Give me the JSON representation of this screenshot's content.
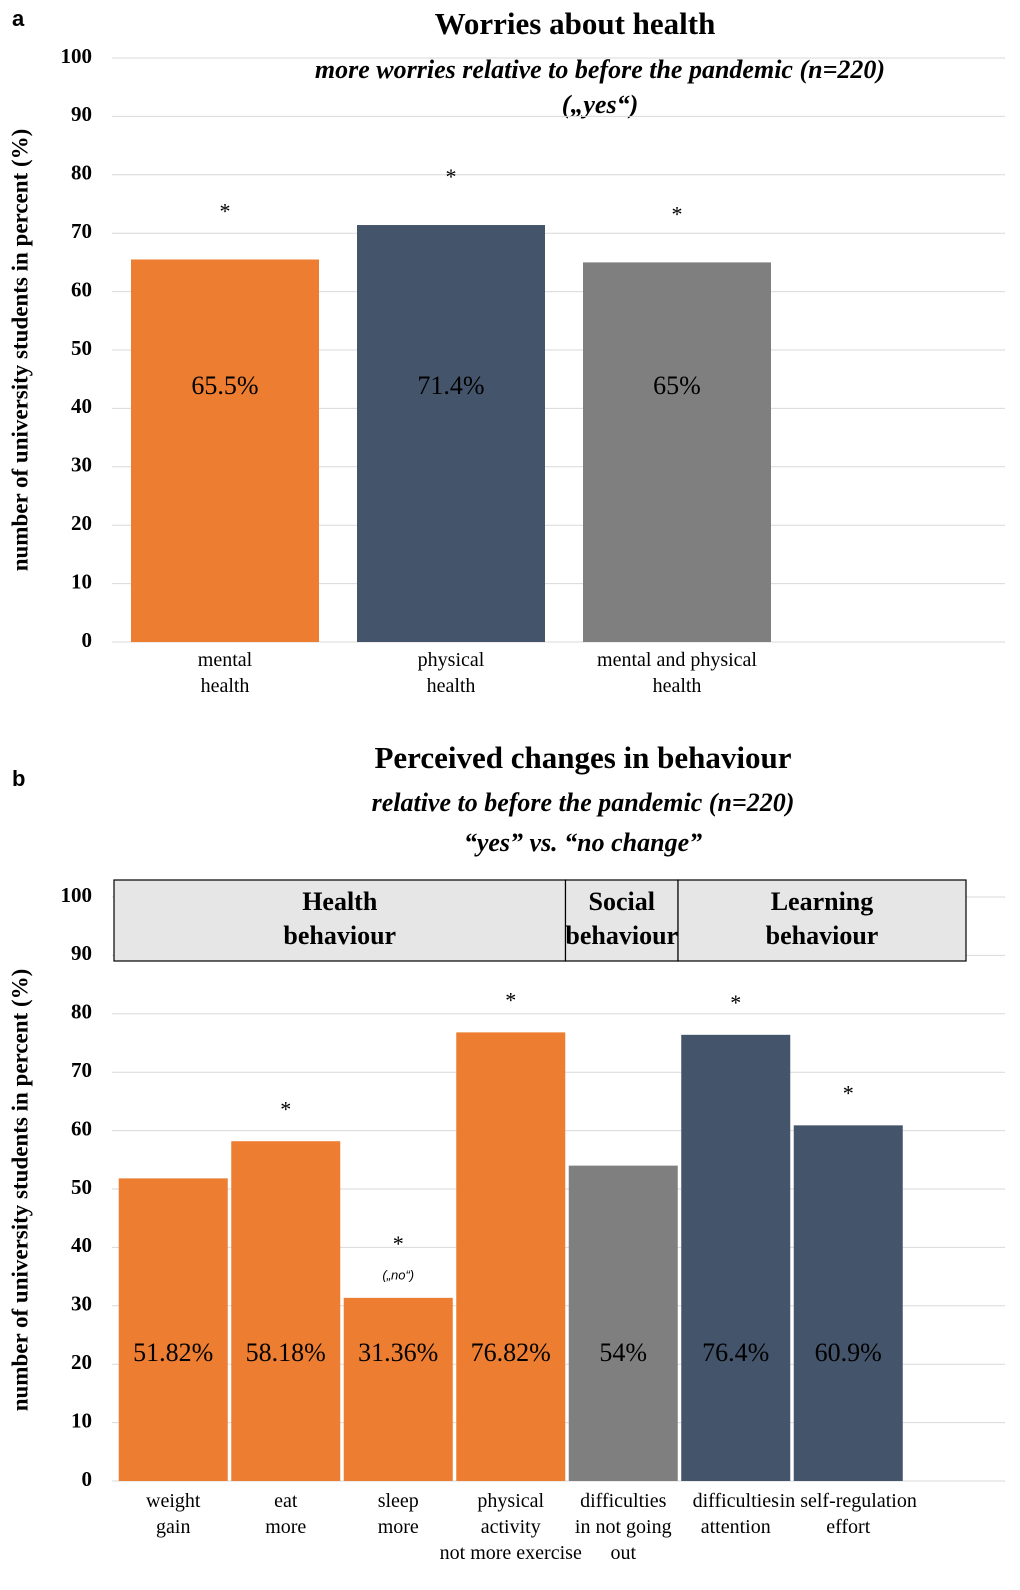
{
  "chart_data": [
    {
      "type": "bar",
      "panel": "a",
      "title": "Worries about health",
      "subtitle": [
        "more worries relative to before the pandemic (n=220)",
        "(„yes“)"
      ],
      "ylabel": "number of university students in percent (%)",
      "categories": [
        "mental\nhealth",
        "physical\nhealth",
        "mental  and physical\nhealth"
      ],
      "values": [
        65.5,
        71.4,
        65
      ],
      "value_labels": [
        "65.5%",
        "71.4%",
        "65%"
      ],
      "colors": [
        "#ed7d31",
        "#44546a",
        "#7f7f7f"
      ],
      "markers": [
        "*",
        "*",
        "*"
      ],
      "ylim": [
        0,
        100
      ],
      "yticks": [
        0,
        10,
        20,
        30,
        40,
        50,
        60,
        70,
        80,
        90,
        100
      ],
      "grid": true
    },
    {
      "type": "bar",
      "panel": "b",
      "title": "Perceived changes in behaviour",
      "subtitle": [
        "relative to before the pandemic (n=220)",
        "“yes” vs. “no change”"
      ],
      "ylabel": "number of university students in percent (%)",
      "categories": [
        "weight\ngain",
        "eat\nmore",
        "sleep\nmore",
        "physical\nactivity\nnot more exercise",
        "difficulties\nin not going\nout",
        "difficulties\nattention",
        "in self-regulation\neffort"
      ],
      "values": [
        51.82,
        58.18,
        31.36,
        76.82,
        54,
        76.4,
        60.9
      ],
      "value_labels": [
        "51.82%",
        "58.18%",
        "31.36%",
        "76.82%",
        "54%",
        "76.4%",
        "60.9%"
      ],
      "colors": [
        "#ed7d31",
        "#ed7d31",
        "#ed7d31",
        "#ed7d31",
        "#7f7f7f",
        "#44546a",
        "#44546a"
      ],
      "markers": [
        null,
        "*",
        "*",
        "*",
        null,
        "*",
        "*"
      ],
      "notes": [
        null,
        null,
        "(„no“)",
        null,
        null,
        null,
        null
      ],
      "groups": [
        {
          "label": "Health\nbehaviour",
          "span": 4
        },
        {
          "label": "Social\nbehaviour",
          "span": 1
        },
        {
          "label": "Learning\nbehaviour",
          "span": 2
        }
      ],
      "ylim": [
        0,
        100
      ],
      "yticks": [
        0,
        10,
        20,
        30,
        40,
        50,
        60,
        70,
        80,
        90,
        100
      ],
      "grid": true
    }
  ]
}
